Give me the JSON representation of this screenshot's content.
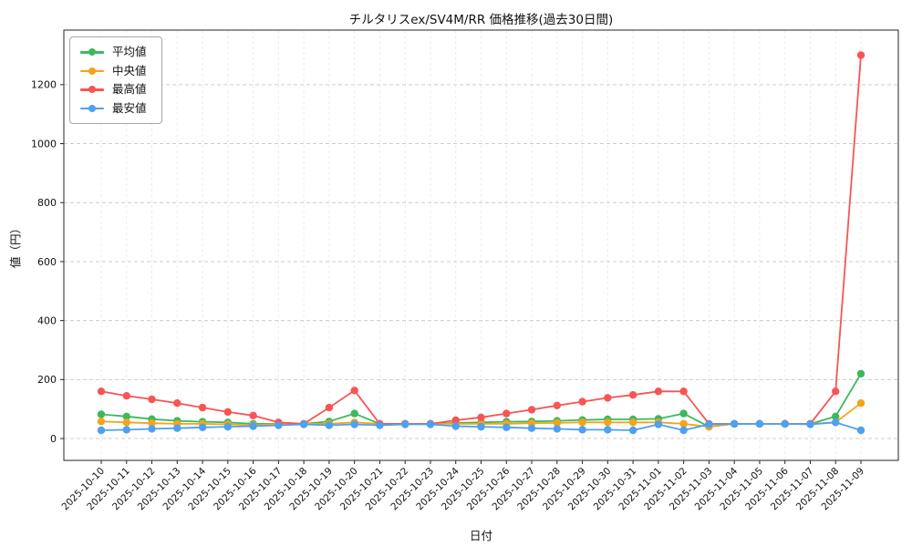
{
  "chart_data": {
    "type": "line",
    "title": "チルタリスex/SV4M/RR 価格推移(過去30日間)",
    "xlabel": "日付",
    "ylabel": "値（円）",
    "legend_position": "upper-left",
    "grid": true,
    "ylim": [
      -74,
      1385
    ],
    "yticks": [
      0,
      200,
      400,
      600,
      800,
      1000,
      1200
    ],
    "x": [
      "2025-10-10",
      "2025-10-11",
      "2025-10-12",
      "2025-10-13",
      "2025-10-14",
      "2025-10-15",
      "2025-10-16",
      "2025-10-17",
      "2025-10-18",
      "2025-10-19",
      "2025-10-20",
      "2025-10-21",
      "2025-10-22",
      "2025-10-23",
      "2025-10-24",
      "2025-10-25",
      "2025-10-26",
      "2025-10-27",
      "2025-10-28",
      "2025-10-29",
      "2025-10-30",
      "2025-10-31",
      "2025-11-01",
      "2025-11-02",
      "2025-11-03",
      "2025-11-04",
      "2025-11-05",
      "2025-11-06",
      "2025-11-07",
      "2025-11-08",
      "2025-11-09"
    ],
    "series": [
      {
        "name": "平均値",
        "key": "average",
        "color": "#3cb95d",
        "values": [
          82,
          75,
          66,
          60,
          57,
          55,
          50,
          50,
          50,
          58,
          85,
          50,
          50,
          50,
          53,
          55,
          57,
          58,
          60,
          63,
          65,
          65,
          67,
          85,
          40,
          50,
          50,
          50,
          50,
          75,
          220
        ]
      },
      {
        "name": "中央値",
        "key": "median",
        "color": "#f5a31a",
        "values": [
          58,
          55,
          52,
          50,
          50,
          48,
          45,
          50,
          50,
          50,
          55,
          50,
          50,
          50,
          50,
          50,
          50,
          52,
          53,
          55,
          55,
          55,
          55,
          50,
          40,
          50,
          50,
          50,
          50,
          55,
          120
        ]
      },
      {
        "name": "最高値",
        "key": "max",
        "color": "#f95454",
        "values": [
          160,
          145,
          133,
          120,
          105,
          90,
          78,
          55,
          50,
          105,
          163,
          50,
          50,
          50,
          62,
          72,
          85,
          98,
          112,
          125,
          138,
          148,
          160,
          160,
          50,
          50,
          50,
          50,
          50,
          160,
          1300
        ]
      },
      {
        "name": "最安値",
        "key": "min",
        "color": "#4da1f0",
        "values": [
          28,
          30,
          33,
          35,
          38,
          40,
          42,
          45,
          48,
          45,
          48,
          45,
          48,
          48,
          42,
          40,
          38,
          35,
          33,
          30,
          30,
          28,
          48,
          28,
          48,
          50,
          50,
          50,
          48,
          55,
          28
        ]
      }
    ]
  }
}
